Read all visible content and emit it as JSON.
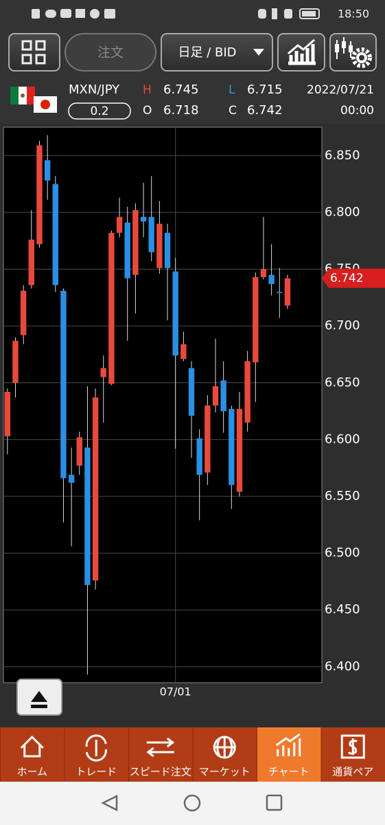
{
  "status_bar": {
    "time": "18:50"
  },
  "toolbar": {
    "order_button": "注文",
    "period_select": "日足 / BID"
  },
  "quote": {
    "pair": "MXN/JPY",
    "spread": "0.2",
    "high_label": "H",
    "high": "6.745",
    "low_label": "L",
    "low": "6.715",
    "open_label": "O",
    "open": "6.718",
    "close_label": "C",
    "close": "6.742",
    "date": "2022/07/21",
    "time": "00:00"
  },
  "chart_data": {
    "type": "candlestick",
    "categories": [
      null,
      null,
      null,
      null,
      null,
      null,
      null,
      null,
      null,
      null,
      null,
      null,
      null,
      null,
      null,
      null,
      null,
      null,
      null,
      null,
      null,
      "07/01",
      null,
      null,
      null,
      null,
      null,
      null,
      null,
      null,
      null,
      null,
      null,
      null,
      null,
      null
    ],
    "open": [
      6.603,
      6.65,
      6.692,
      6.736,
      6.772,
      6.846,
      6.825,
      6.731,
      6.569,
      6.577,
      6.593,
      6.476,
      6.655,
      6.649,
      6.782,
      6.791,
      6.745,
      6.796,
      6.796,
      6.751,
      6.782,
      6.748,
      6.671,
      6.663,
      6.601,
      6.571,
      6.63,
      6.652,
      6.627,
      6.554,
      6.615,
      6.668,
      6.743,
      6.745,
      6.73,
      6.718
    ],
    "high": [
      6.645,
      6.69,
      6.736,
      6.802,
      6.863,
      6.868,
      6.832,
      6.733,
      6.593,
      6.607,
      6.647,
      6.645,
      6.674,
      6.784,
      6.813,
      6.805,
      6.808,
      6.826,
      6.832,
      6.81,
      6.79,
      6.76,
      6.695,
      6.669,
      6.609,
      6.639,
      6.689,
      6.669,
      6.63,
      6.642,
      6.678,
      6.747,
      6.796,
      6.772,
      6.751,
      6.745
    ],
    "low": [
      6.587,
      6.637,
      6.684,
      6.733,
      6.769,
      6.811,
      6.73,
      6.527,
      6.506,
      6.569,
      6.393,
      6.468,
      6.615,
      6.648,
      6.778,
      6.687,
      6.711,
      6.778,
      6.757,
      6.746,
      6.705,
      6.592,
      6.669,
      6.584,
      6.529,
      6.56,
      6.624,
      6.606,
      6.539,
      6.55,
      6.607,
      6.633,
      6.741,
      6.727,
      6.707,
      6.715
    ],
    "close": [
      6.642,
      6.687,
      6.731,
      6.776,
      6.859,
      6.828,
      6.736,
      6.566,
      6.562,
      6.602,
      6.472,
      6.637,
      6.663,
      6.782,
      6.796,
      6.742,
      6.802,
      6.792,
      6.765,
      6.79,
      6.751,
      6.674,
      6.684,
      6.621,
      6.569,
      6.63,
      6.647,
      6.625,
      6.56,
      6.627,
      6.669,
      6.743,
      6.75,
      6.737,
      6.729,
      6.742
    ],
    "up_color": "#e8493c",
    "down_color": "#2b8fe3",
    "ylim": [
      6.386,
      6.875
    ],
    "yticks": [
      {
        "value": 6.4,
        "label": "6.400"
      },
      {
        "value": 6.45,
        "label": "6.450"
      },
      {
        "value": 6.5,
        "label": "6.500"
      },
      {
        "value": 6.55,
        "label": "6.550"
      },
      {
        "value": 6.6,
        "label": "6.600"
      },
      {
        "value": 6.65,
        "label": "6.650"
      },
      {
        "value": 6.7,
        "label": "6.700"
      },
      {
        "value": 6.75,
        "label": "6.750"
      },
      {
        "value": 6.8,
        "label": "6.800"
      },
      {
        "value": 6.85,
        "label": "6.850"
      }
    ],
    "grid": true,
    "last_price": 6.742
  },
  "bottom_nav": {
    "items": [
      "ホーム",
      "トレード",
      "スピード注文",
      "マーケット",
      "チャート",
      "通貨ペア"
    ],
    "selected": 4
  }
}
